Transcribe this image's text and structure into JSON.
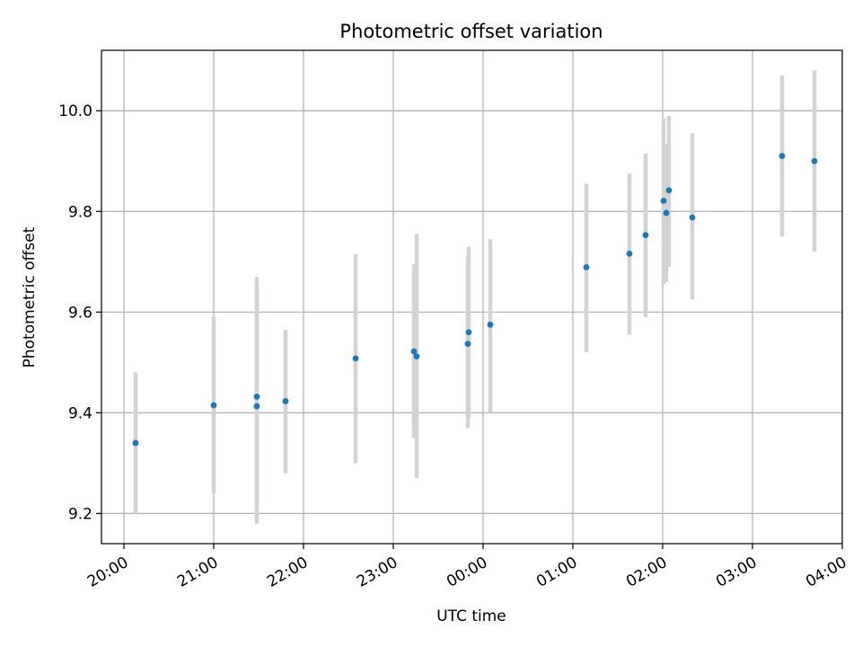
{
  "chart_data": {
    "type": "scatter",
    "title": "Photometric offset variation",
    "xlabel": "UTC time",
    "ylabel": "Photometric offset",
    "x_ticks": [
      "20:00",
      "21:00",
      "22:00",
      "23:00",
      "00:00",
      "01:00",
      "02:00",
      "03:00",
      "04:00"
    ],
    "x_tick_hours": [
      20,
      21,
      22,
      23,
      24,
      25,
      26,
      27,
      28
    ],
    "xlim_hours": [
      19.75,
      28.0
    ],
    "y_ticks": [
      9.2,
      9.4,
      9.6,
      9.8,
      10.0
    ],
    "y_tick_labels": [
      "9.2",
      "9.4",
      "9.6",
      "9.8",
      "10.0"
    ],
    "ylim": [
      9.14,
      10.12
    ],
    "grid": true,
    "marker_color": "#1f77b4",
    "errorbar_color": "#d3d3d3",
    "points": [
      {
        "t": 20.13,
        "y": 9.34,
        "err_low": 9.2,
        "err_high": 9.48
      },
      {
        "t": 21.0,
        "y": 9.415,
        "err_low": 9.24,
        "err_high": 9.59
      },
      {
        "t": 21.48,
        "y": 9.432,
        "err_low": 9.22,
        "err_high": 9.645
      },
      {
        "t": 21.48,
        "y": 9.413,
        "err_low": 9.18,
        "err_high": 9.67
      },
      {
        "t": 21.8,
        "y": 9.423,
        "err_low": 9.28,
        "err_high": 9.565
      },
      {
        "t": 22.58,
        "y": 9.508,
        "err_low": 9.3,
        "err_high": 9.715
      },
      {
        "t": 23.23,
        "y": 9.522,
        "err_low": 9.35,
        "err_high": 9.695
      },
      {
        "t": 23.26,
        "y": 9.512,
        "err_low": 9.27,
        "err_high": 9.755
      },
      {
        "t": 23.84,
        "y": 9.56,
        "err_low": 9.39,
        "err_high": 9.73
      },
      {
        "t": 23.83,
        "y": 9.537,
        "err_low": 9.37,
        "err_high": 9.71
      },
      {
        "t": 24.08,
        "y": 9.575,
        "err_low": 9.4,
        "err_high": 9.745
      },
      {
        "t": 25.15,
        "y": 9.689,
        "err_low": 9.52,
        "err_high": 9.855
      },
      {
        "t": 25.63,
        "y": 9.716,
        "err_low": 9.555,
        "err_high": 9.875
      },
      {
        "t": 25.81,
        "y": 9.753,
        "err_low": 9.59,
        "err_high": 9.915
      },
      {
        "t": 26.01,
        "y": 9.821,
        "err_low": 9.655,
        "err_high": 9.985
      },
      {
        "t": 26.04,
        "y": 9.797,
        "err_low": 9.66,
        "err_high": 9.935
      },
      {
        "t": 26.07,
        "y": 9.842,
        "err_low": 9.69,
        "err_high": 9.99
      },
      {
        "t": 26.33,
        "y": 9.788,
        "err_low": 9.625,
        "err_high": 9.955
      },
      {
        "t": 27.33,
        "y": 9.91,
        "err_low": 9.75,
        "err_high": 10.07
      },
      {
        "t": 27.69,
        "y": 9.9,
        "err_low": 9.72,
        "err_high": 10.08
      }
    ]
  }
}
